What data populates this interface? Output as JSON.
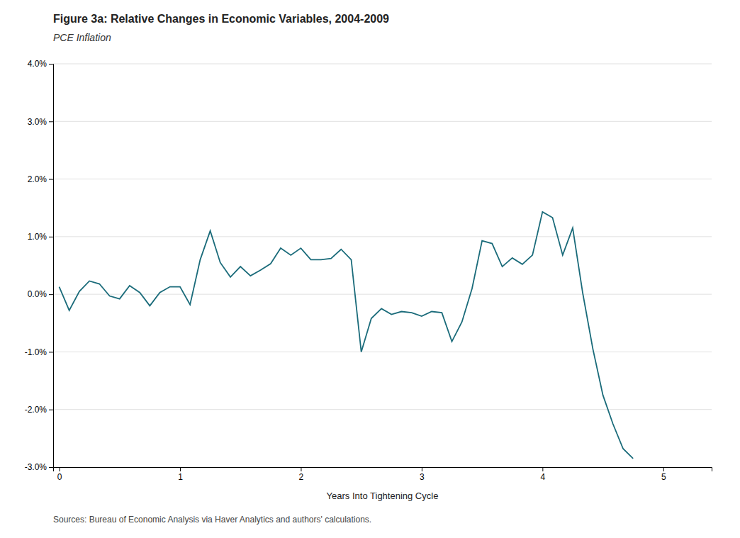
{
  "chart_data": {
    "type": "line",
    "title": "Figure 3a: Relative Changes in Economic Variables, 2004-2009",
    "subtitle": "PCE Inflation",
    "xlabel": "Years Into Tightening Cycle",
    "source": "Sources: Bureau of Economic Analysis via Haver Analytics and authors' calculations.",
    "color": "#1a6b7a",
    "xlim": [
      -0.05,
      5.4
    ],
    "ylim": [
      -0.03,
      0.04
    ],
    "xticks": [
      0,
      1,
      2,
      3,
      4,
      5
    ],
    "yticks": [
      {
        "value": -0.03,
        "label": "-3.0%"
      },
      {
        "value": -0.02,
        "label": "-2.0%"
      },
      {
        "value": -0.01,
        "label": "-1.0%"
      },
      {
        "value": 0.0,
        "label": "0.0%"
      },
      {
        "value": 0.01,
        "label": "1.0%"
      },
      {
        "value": 0.02,
        "label": "2.0%"
      },
      {
        "value": 0.03,
        "label": "3.0%"
      },
      {
        "value": 0.04,
        "label": "4.0%"
      }
    ],
    "grid": true,
    "x": [
      0.0,
      0.083,
      0.167,
      0.25,
      0.333,
      0.417,
      0.5,
      0.583,
      0.667,
      0.75,
      0.833,
      0.917,
      1.0,
      1.083,
      1.167,
      1.25,
      1.333,
      1.417,
      1.5,
      1.583,
      1.667,
      1.75,
      1.833,
      1.917,
      2.0,
      2.083,
      2.167,
      2.25,
      2.333,
      2.417,
      2.5,
      2.583,
      2.667,
      2.75,
      2.833,
      2.917,
      3.0,
      3.083,
      3.167,
      3.25,
      3.333,
      3.417,
      3.5,
      3.583,
      3.667,
      3.75,
      3.833,
      3.917,
      4.0,
      4.083,
      4.167,
      4.25,
      4.333,
      4.417,
      4.5,
      4.583,
      4.667,
      4.75
    ],
    "values": [
      0.0013,
      -0.0028,
      0.0005,
      0.0023,
      0.0018,
      -0.0003,
      -0.0008,
      0.0015,
      0.0003,
      -0.002,
      0.0003,
      0.0013,
      0.0013,
      -0.0018,
      0.006,
      0.011,
      0.0055,
      0.003,
      0.0048,
      0.0032,
      0.0042,
      0.0053,
      0.008,
      0.0068,
      0.008,
      0.006,
      0.006,
      0.0062,
      0.0078,
      0.006,
      -0.01,
      -0.0042,
      -0.0025,
      -0.0035,
      -0.003,
      -0.0032,
      -0.0038,
      -0.003,
      -0.0032,
      -0.0082,
      -0.0048,
      0.001,
      0.0093,
      0.0088,
      0.0048,
      0.0063,
      0.0052,
      0.0068,
      0.0143,
      0.0133,
      0.0068,
      0.0115,
      0.0002,
      -0.0095,
      -0.0175,
      -0.0225,
      -0.0268,
      -0.0285
    ]
  }
}
